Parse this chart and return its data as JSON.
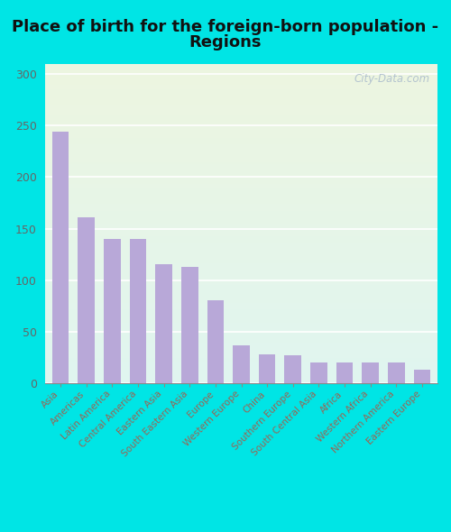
{
  "categories": [
    "Asia",
    "Americas",
    "Latin America",
    "Central America",
    "Eastern Asia",
    "South Eastern Asia",
    "Europe",
    "Western Europe",
    "China",
    "Southern Europe",
    "South Central Asia",
    "Africa",
    "Western Africa",
    "Northern America",
    "Eastern Europe"
  ],
  "values": [
    244,
    161,
    140,
    140,
    115,
    113,
    80,
    37,
    28,
    27,
    20,
    20,
    20,
    20,
    13
  ],
  "bar_color": "#b8a8d8",
  "fig_bg_color": "#00e5e5",
  "plot_bg_top": "#edf5e0",
  "plot_bg_bottom": "#e0f5f0",
  "title_line1": "Place of birth for the foreign-born population -",
  "title_line2": "Regions",
  "title_fontsize": 13,
  "tick_label_color": "#996655",
  "ytick_color": "#666666",
  "ylabel_ticks": [
    0,
    50,
    100,
    150,
    200,
    250,
    300
  ],
  "ylim": [
    0,
    310
  ],
  "watermark": "City-Data.com",
  "watermark_color": "#aabbcc"
}
